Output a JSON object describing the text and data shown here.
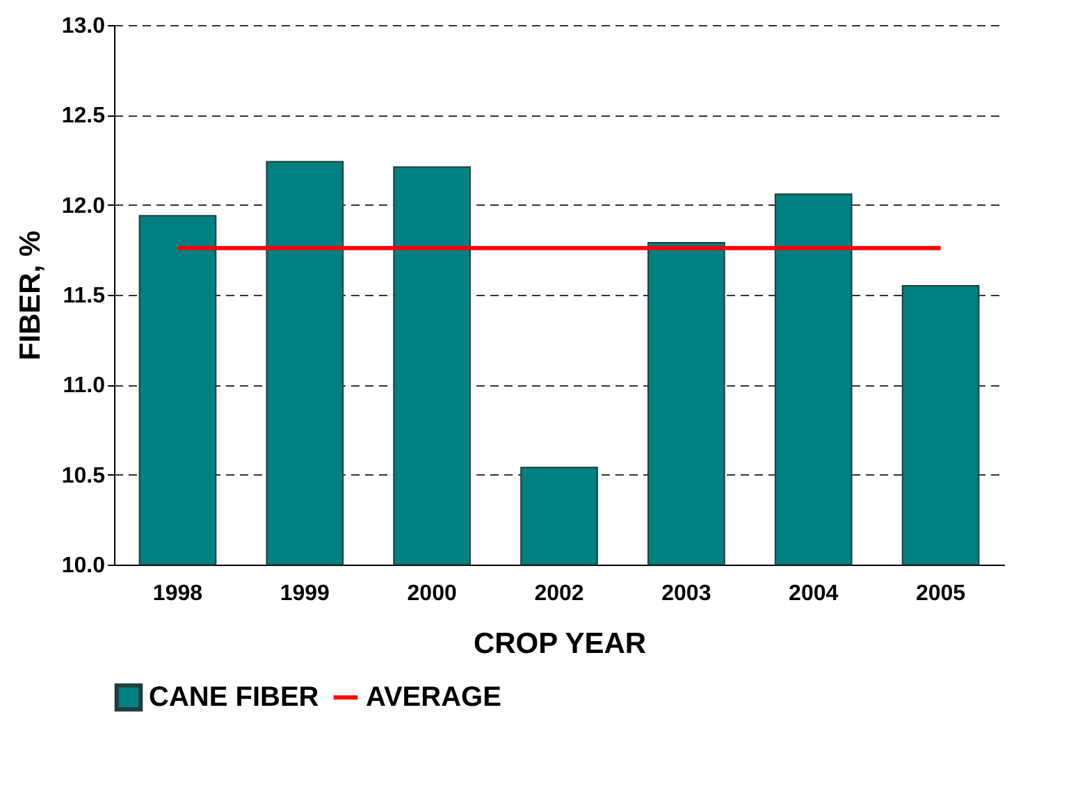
{
  "chart_data": {
    "type": "bar",
    "xlabel": "CROP YEAR",
    "ylabel": "FIBER, %",
    "categories": [
      "1998",
      "1999",
      "2000",
      "2002",
      "2003",
      "2004",
      "2005"
    ],
    "series": [
      {
        "name": "CANE FIBER",
        "color": "#008080",
        "values": [
          11.94,
          12.24,
          12.21,
          10.54,
          11.79,
          12.06,
          11.55
        ]
      },
      {
        "name": "AVERAGE",
        "type": "line",
        "color": "#ff0000",
        "values": [
          11.76,
          11.76,
          11.76,
          11.76,
          11.76,
          11.76,
          11.76
        ]
      }
    ],
    "ylim": [
      10.0,
      13.0
    ],
    "yticks": [
      {
        "value": 10,
        "label": "10.0"
      },
      {
        "value": 10.5,
        "label": "10.5"
      },
      {
        "value": 11,
        "label": "11.0"
      },
      {
        "value": 11.5,
        "label": "11.5"
      },
      {
        "value": 12,
        "label": "12.0"
      },
      {
        "value": 12.5,
        "label": "12.5"
      },
      {
        "value": 13,
        "label": "13.0"
      }
    ],
    "grid": "y",
    "legend": "bottom"
  }
}
